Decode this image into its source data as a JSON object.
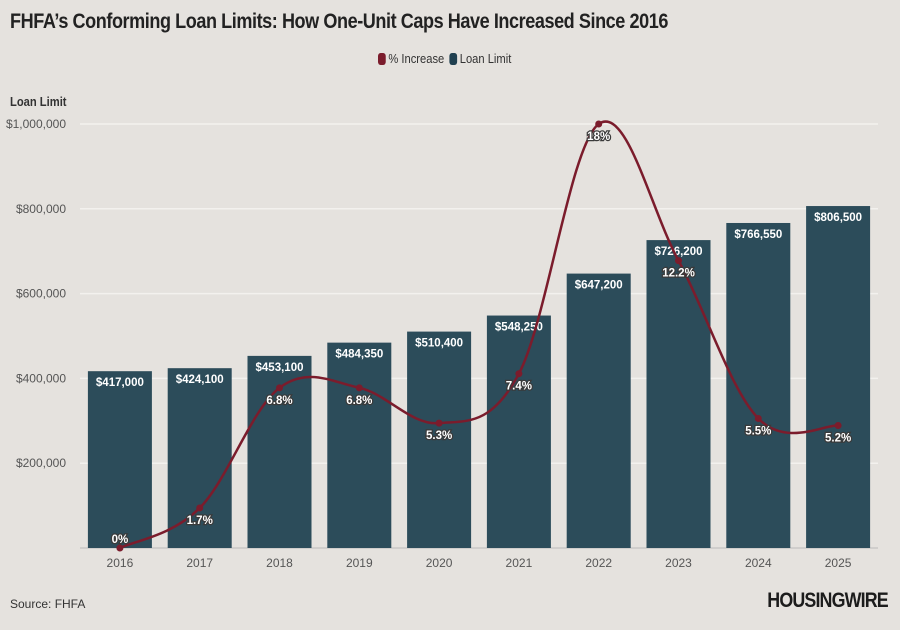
{
  "title": "FHFA’s Conforming Loan Limits: How One-Unit Caps Have Increased Since 2016",
  "source": "Source: FHFA",
  "logo": "HOUSINGWIRE",
  "chart_data": {
    "type": "bar",
    "title": "FHFA’s Conforming Loan Limits: How One-Unit Caps Have Increased Since 2016",
    "ylabel": "Loan Limit",
    "xlabel": "",
    "ylim": [
      0,
      1000000
    ],
    "yticks": [
      "$200,000",
      "$400,000",
      "$600,000",
      "$800,000",
      "$1,000,000"
    ],
    "ytick_values": [
      200000,
      400000,
      600000,
      800000,
      1000000
    ],
    "grid": true,
    "legend": "top-center",
    "categories": [
      "2016",
      "2017",
      "2018",
      "2019",
      "2020",
      "2021",
      "2022",
      "2023",
      "2024",
      "2025"
    ],
    "series": [
      {
        "name": "Loan Limit",
        "type": "bar",
        "color": "#2c4c5a",
        "values": [
          417000,
          424100,
          453100,
          484350,
          510400,
          548250,
          647200,
          726200,
          766550,
          806500
        ],
        "labels": [
          "$417,000",
          "$424,100",
          "$453,100",
          "$484,350",
          "$510,400",
          "$548,250",
          "$647,200",
          "$726,200",
          "$766,550",
          "$806,500"
        ]
      },
      {
        "name": "% Increase",
        "type": "line",
        "color": "#7b1c2c",
        "ylim": [
          0,
          18
        ],
        "values": [
          0,
          1.7,
          6.8,
          6.8,
          5.3,
          7.4,
          18,
          12.2,
          5.5,
          5.2
        ],
        "labels": [
          "0%",
          "1.7%",
          "6.8%",
          "6.8%",
          "5.3%",
          "7.4%",
          "18%",
          "12.2%",
          "5.5%",
          "5.2%"
        ]
      }
    ]
  }
}
